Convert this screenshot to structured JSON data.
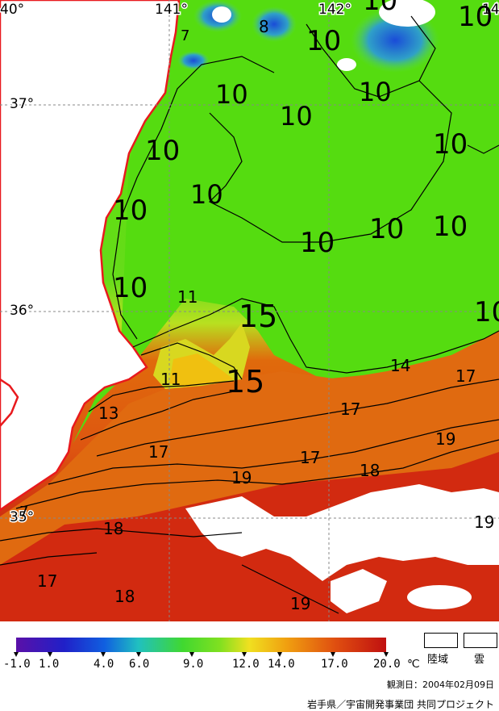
{
  "graticule": {
    "lon_labels": [
      "40°",
      "141°",
      "142°",
      "14"
    ],
    "lat_labels": [
      "37°",
      "36°",
      "35°"
    ]
  },
  "isotherm_labels": [
    {
      "text": "10"
    },
    {
      "text": "10"
    },
    {
      "text": "10"
    },
    {
      "text": "10"
    },
    {
      "text": "10"
    },
    {
      "text": "10"
    },
    {
      "text": "10"
    },
    {
      "text": "10"
    },
    {
      "text": "10"
    },
    {
      "text": "10"
    },
    {
      "text": "10"
    },
    {
      "text": "10"
    },
    {
      "text": "10"
    },
    {
      "text": "8"
    },
    {
      "text": "7"
    },
    {
      "text": "7"
    },
    {
      "text": "11"
    },
    {
      "text": "11"
    },
    {
      "text": "15"
    },
    {
      "text": "15"
    },
    {
      "text": "14"
    },
    {
      "text": "13"
    },
    {
      "text": "17"
    },
    {
      "text": "17"
    },
    {
      "text": "17"
    },
    {
      "text": "17"
    },
    {
      "text": "17"
    },
    {
      "text": "18"
    },
    {
      "text": "18"
    },
    {
      "text": "18"
    },
    {
      "text": "19"
    },
    {
      "text": "19"
    },
    {
      "text": "19"
    },
    {
      "text": "19"
    }
  ],
  "legend": {
    "ticks": [
      "-1.0",
      "1.0",
      "4.0",
      "6.0",
      "9.0",
      "12.0",
      "14.0",
      "17.0",
      "20.0"
    ],
    "unit": "℃",
    "land_label": "陸域",
    "cloud_label": "雲",
    "date_text": "観測日：2004年02月09日",
    "credit_text": "岩手県／宇宙開発事業団 共同プロジェクト"
  },
  "colors": {
    "land": "#ffffff",
    "coast": "#e8191d",
    "cloud": "#ffffff"
  }
}
